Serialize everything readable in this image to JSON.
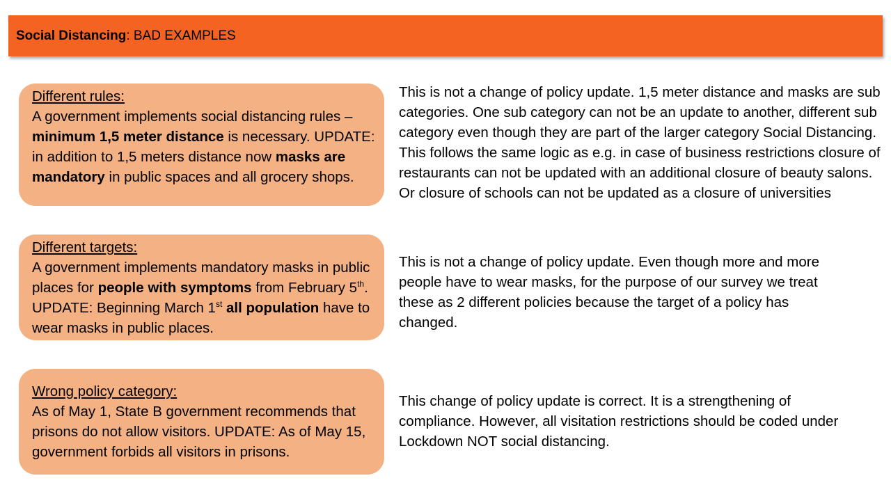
{
  "title": {
    "bold": "Social Distancing",
    "rest": ": BAD EXAMPLES"
  },
  "examples": [
    {
      "heading": "Different rules:",
      "t1": "A government implements social distancing rules – ",
      "b1": "minimum 1,5 meter distance",
      "t2": " is necessary. UPDATE: in addition to 1,5 meters distance now ",
      "b2": "masks are mandatory",
      "t3": " in public spaces and all grocery shops.",
      "explanation": "This is not a change of policy update. 1,5 meter distance and masks are sub categories. One sub category can not be an update to another, different sub category even though they are part of the larger category Social Distancing. This follows the same logic as e.g. in case of business restrictions closure of restaurants can not be updated with an additional closure of beauty salons. Or closure of schools can not be updated as a closure of universities"
    },
    {
      "heading": "Different targets:",
      "t1": "A government implements mandatory masks in public places for ",
      "b1": "people with symptoms",
      "t2": " from February 5",
      "sup1": "th",
      "t3": ". UPDATE: Beginning March 1",
      "sup2": "st",
      "t4": " ",
      "b2": "all population",
      "t5": " have to wear masks in public places.",
      "explanation": "This is not a change of policy update. Even though more and more people have to wear masks, for the purpose of our survey we treat these as 2 different policies because the target of a policy has changed."
    },
    {
      "heading": "Wrong policy category:",
      "text": "As of May 1, State B government recommends that prisons do not allow visitors. UPDATE: As of May 15, government forbids all visitors in prisons.",
      "explanation": "This change of policy update is correct. It is a strengthening of compliance. However, all visitation restrictions should be coded under Lockdown NOT social distancing."
    }
  ],
  "colors": {
    "title_bar": "#f56322",
    "box": "#f3b184"
  }
}
